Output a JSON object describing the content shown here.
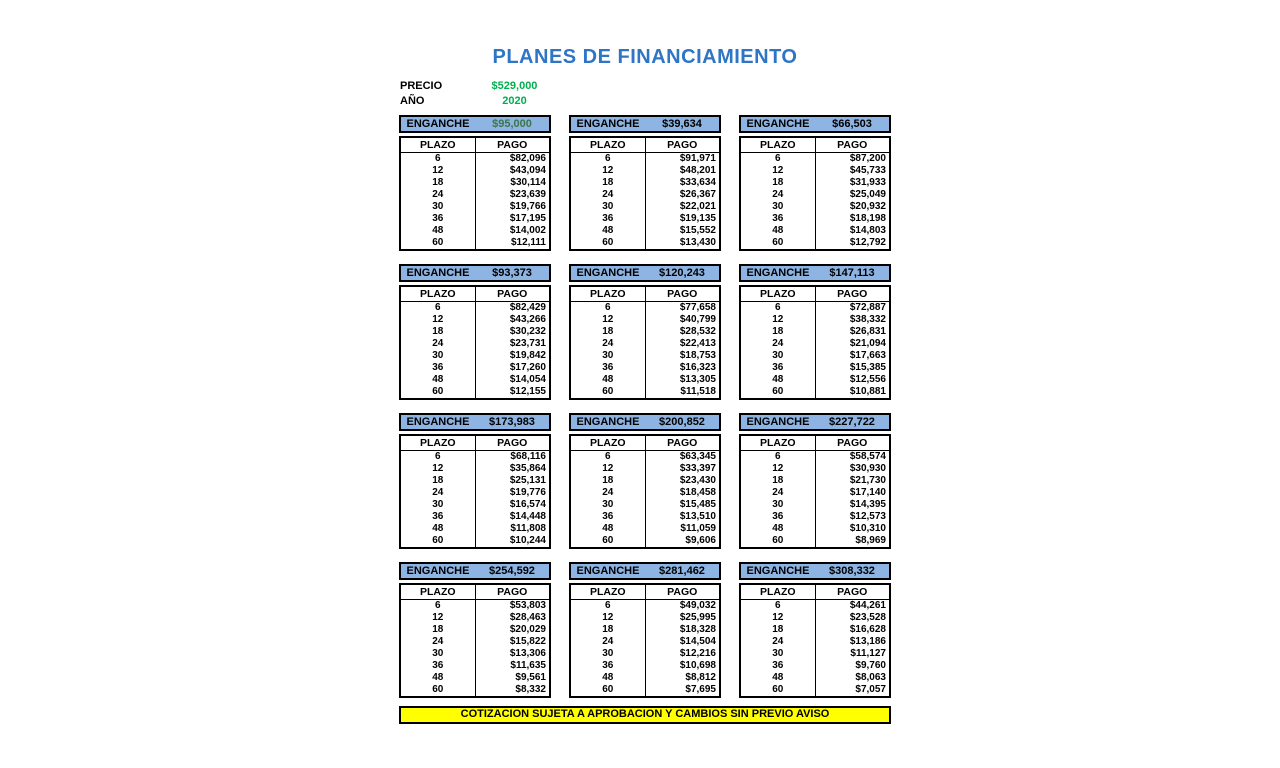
{
  "title": "PLANES DE FINANCIAMIENTO",
  "price": {
    "label": "PRECIO",
    "value": "$529,000"
  },
  "year": {
    "label": "AÑO",
    "value": "2020"
  },
  "labels": {
    "enganche": "ENGANCHE",
    "plazo": "PLAZO",
    "pago": "PAGO"
  },
  "plazos": [
    "6",
    "12",
    "18",
    "24",
    "30",
    "36",
    "48",
    "60"
  ],
  "plans": [
    {
      "enganche": "$95,000",
      "enganche_color": "#3E7548",
      "pagos": [
        "$82,096",
        "$43,094",
        "$30,114",
        "$23,639",
        "$19,766",
        "$17,195",
        "$14,002",
        "$12,111"
      ]
    },
    {
      "enganche": "$39,634",
      "pagos": [
        "$91,971",
        "$48,201",
        "$33,634",
        "$26,367",
        "$22,021",
        "$19,135",
        "$15,552",
        "$13,430"
      ]
    },
    {
      "enganche": "$66,503",
      "pagos": [
        "$87,200",
        "$45,733",
        "$31,933",
        "$25,049",
        "$20,932",
        "$18,198",
        "$14,803",
        "$12,792"
      ]
    },
    {
      "enganche": "$93,373",
      "pagos": [
        "$82,429",
        "$43,266",
        "$30,232",
        "$23,731",
        "$19,842",
        "$17,260",
        "$14,054",
        "$12,155"
      ]
    },
    {
      "enganche": "$120,243",
      "pagos": [
        "$77,658",
        "$40,799",
        "$28,532",
        "$22,413",
        "$18,753",
        "$16,323",
        "$13,305",
        "$11,518"
      ]
    },
    {
      "enganche": "$147,113",
      "pagos": [
        "$72,887",
        "$38,332",
        "$26,831",
        "$21,094",
        "$17,663",
        "$15,385",
        "$12,556",
        "$10,881"
      ]
    },
    {
      "enganche": "$173,983",
      "pagos": [
        "$68,116",
        "$35,864",
        "$25,131",
        "$19,776",
        "$16,574",
        "$14,448",
        "$11,808",
        "$10,244"
      ]
    },
    {
      "enganche": "$200,852",
      "pagos": [
        "$63,345",
        "$33,397",
        "$23,430",
        "$18,458",
        "$15,485",
        "$13,510",
        "$11,059",
        "$9,606"
      ]
    },
    {
      "enganche": "$227,722",
      "pagos": [
        "$58,574",
        "$30,930",
        "$21,730",
        "$17,140",
        "$14,395",
        "$12,573",
        "$10,310",
        "$8,969"
      ]
    },
    {
      "enganche": "$254,592",
      "pagos": [
        "$53,803",
        "$28,463",
        "$20,029",
        "$15,822",
        "$13,306",
        "$11,635",
        "$9,561",
        "$8,332"
      ]
    },
    {
      "enganche": "$281,462",
      "pagos": [
        "$49,032",
        "$25,995",
        "$18,328",
        "$14,504",
        "$12,216",
        "$10,698",
        "$8,812",
        "$7,695"
      ]
    },
    {
      "enganche": "$308,332",
      "pagos": [
        "$44,261",
        "$23,528",
        "$16,628",
        "$13,186",
        "$11,127",
        "$9,760",
        "$8,063",
        "$7,057"
      ]
    }
  ],
  "footer": "COTIZACION SUJETA A APROBACION Y CAMBIOS SIN PREVIO AVISO",
  "colors": {
    "title_blue": "#2E75C6",
    "green": "#00B050",
    "header_fill": "#8DB4E2",
    "banner_yellow": "#FFFF00"
  }
}
